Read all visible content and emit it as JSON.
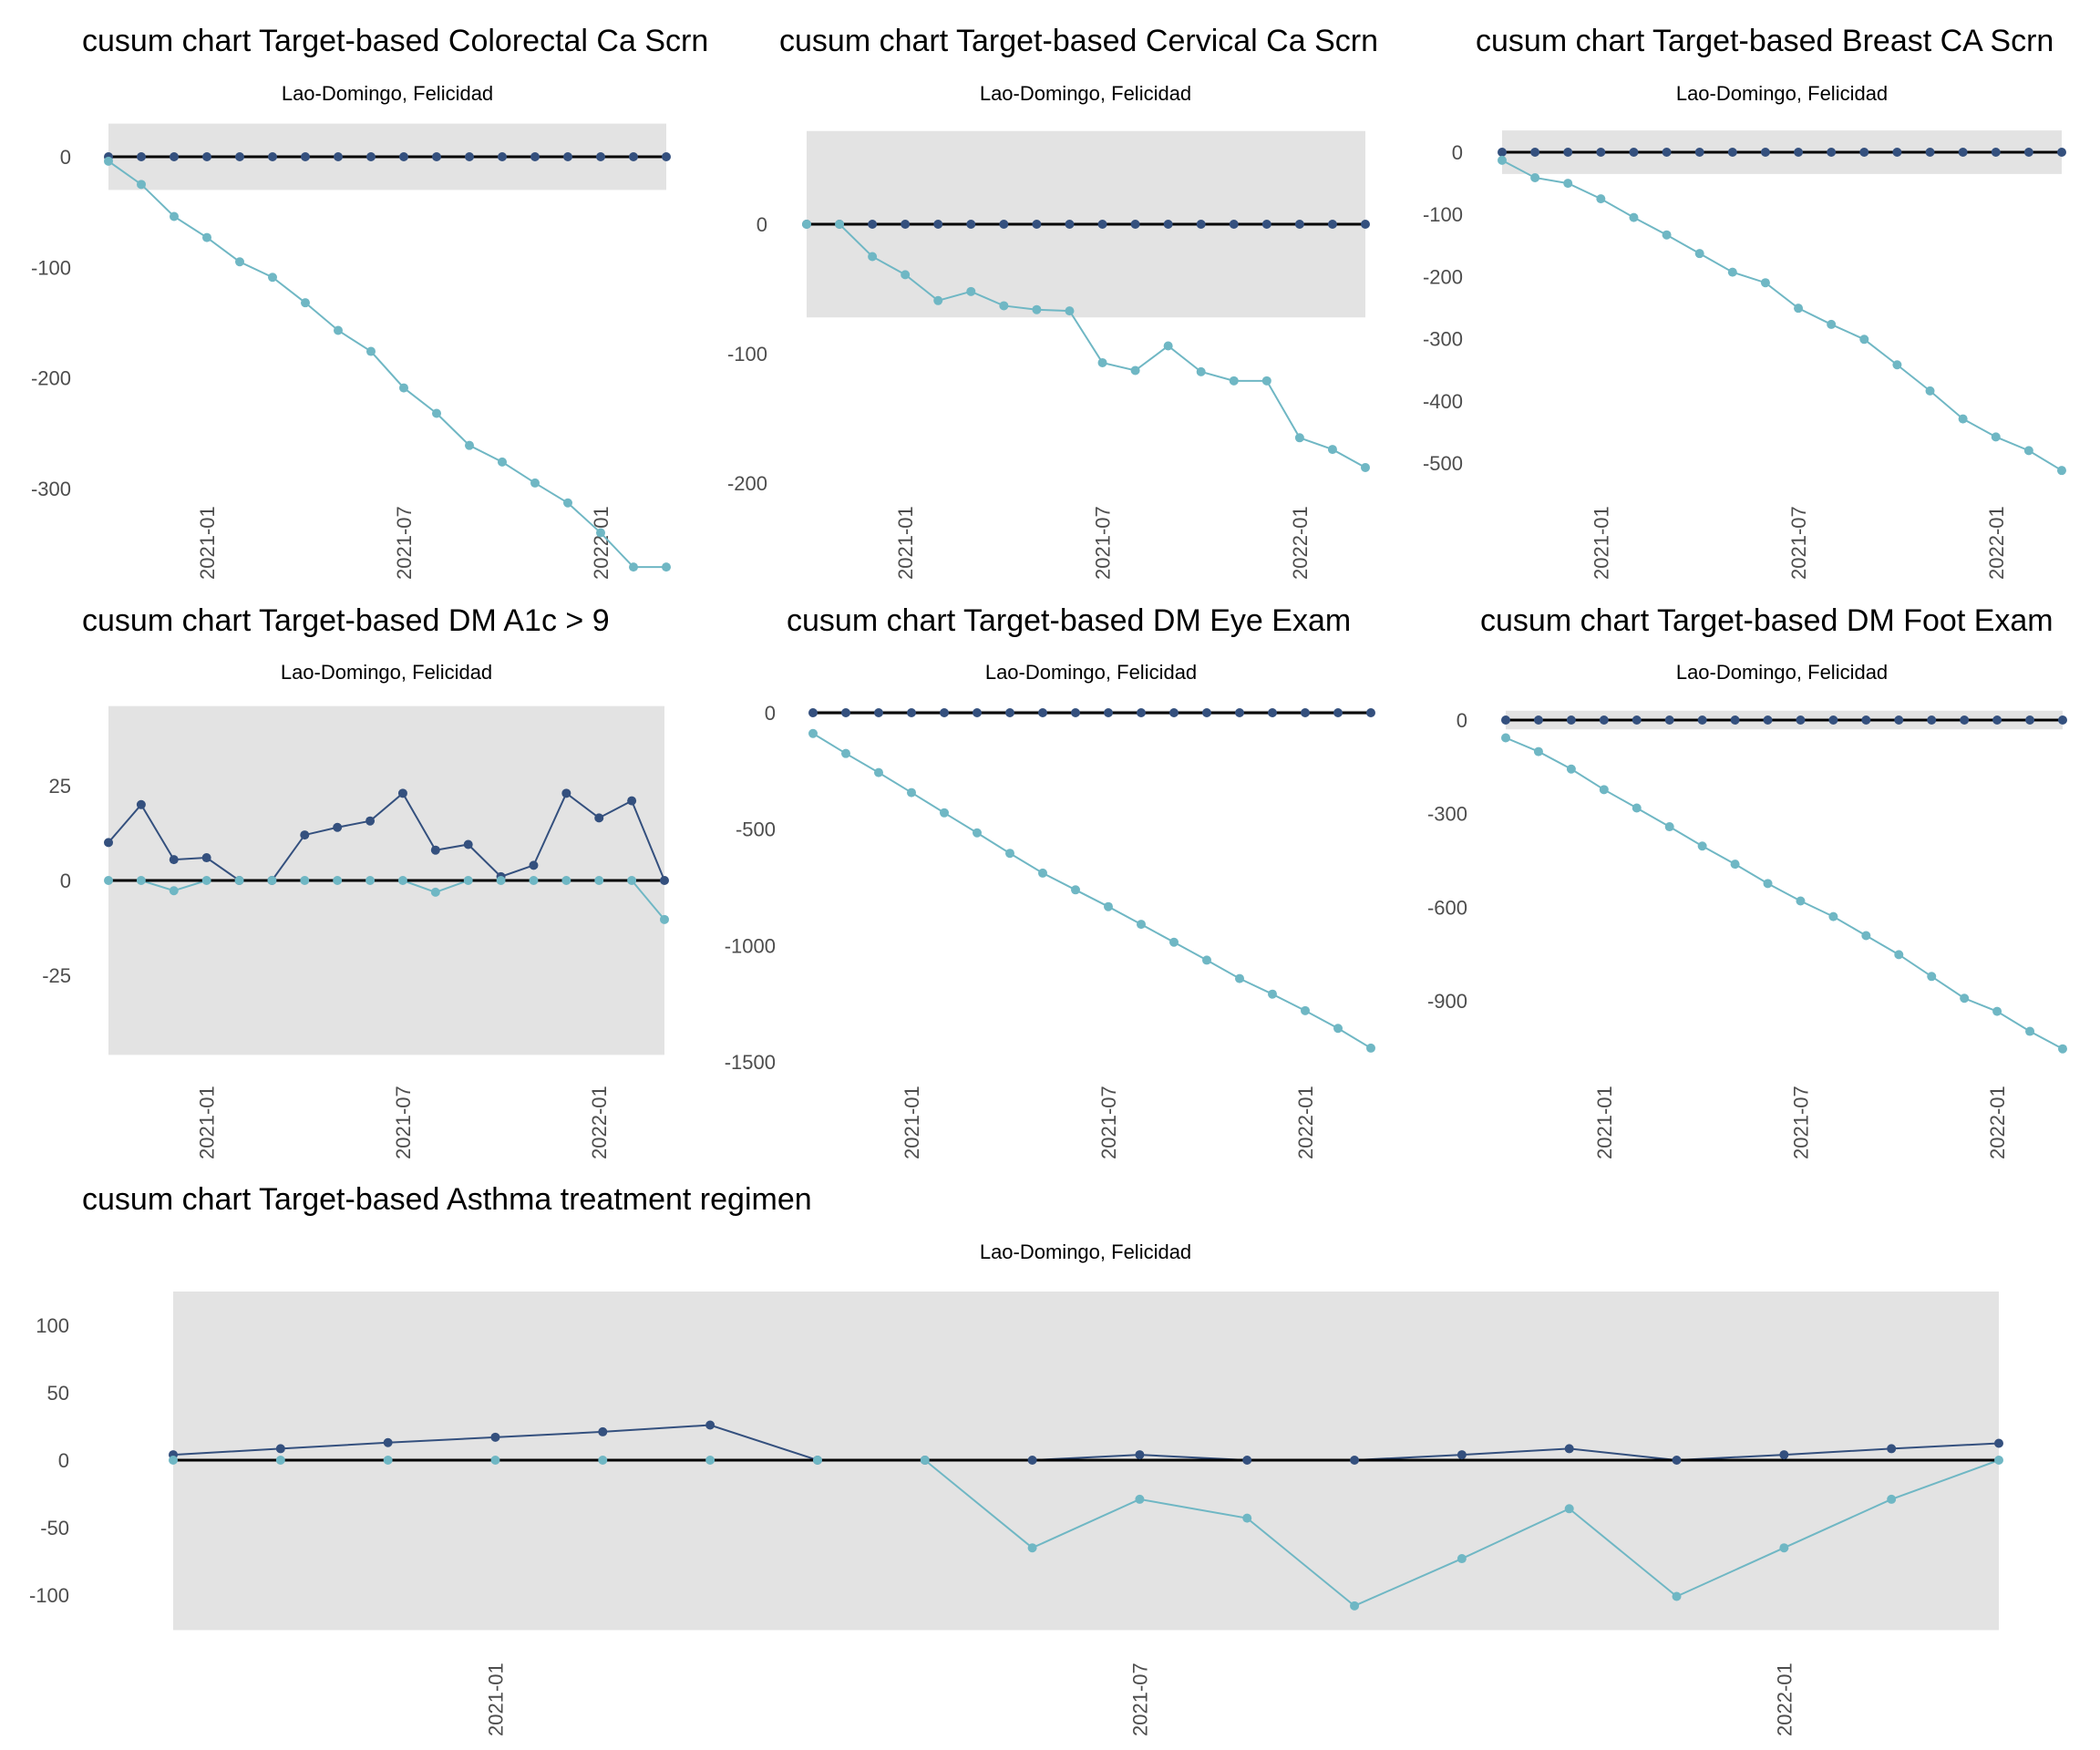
{
  "colors": {
    "upper_series": "#34507e",
    "lower_series": "#6fb7c4",
    "target_line": "#000000",
    "control_band": "#e3e3e3",
    "text": "#000000",
    "tick_text": "#4d4d4d"
  },
  "chart_data": [
    {
      "id": "colorectal",
      "type": "line",
      "title": "cusum chart Target-based  Colorectal Ca Scrn",
      "subtitle": "Lao-Domingo, Felicidad",
      "xlabel": "",
      "ylabel": "",
      "x": [
        "2020-10",
        "2020-11",
        "2020-12",
        "2021-01",
        "2021-02",
        "2021-03",
        "2021-04",
        "2021-05",
        "2021-06",
        "2021-07",
        "2021-08",
        "2021-09",
        "2021-10",
        "2021-11",
        "2021-12",
        "2022-01",
        "2022-02",
        "2022-03"
      ],
      "x_ticks": [
        "2021-01",
        "2021-07",
        "2022-01"
      ],
      "y_ticks": [
        0,
        -100,
        -200,
        -300
      ],
      "y_tick_labels": [
        "0",
        "-100",
        "-200",
        "-300"
      ],
      "control_band": [
        -30,
        30
      ],
      "target": 0,
      "grid": false,
      "legend": "none",
      "series": [
        {
          "name": "upper",
          "values": [
            0,
            0,
            0,
            0,
            0,
            0,
            0,
            0,
            0,
            0,
            0,
            0,
            0,
            0,
            0,
            0,
            0,
            0
          ]
        },
        {
          "name": "lower",
          "values": [
            -4,
            -25,
            -54,
            -73,
            -95,
            -109,
            -132,
            -157,
            -176,
            -209,
            -232,
            -261,
            -276,
            -295,
            -313,
            -340,
            -371,
            -371
          ]
        }
      ]
    },
    {
      "id": "cervical",
      "type": "line",
      "title": "cusum chart Target-based  Cervical Ca Scrn",
      "subtitle": "Lao-Domingo, Felicidad",
      "xlabel": "",
      "ylabel": "",
      "x": [
        "2020-10",
        "2020-11",
        "2020-12",
        "2021-01",
        "2021-02",
        "2021-03",
        "2021-04",
        "2021-05",
        "2021-06",
        "2021-07",
        "2021-08",
        "2021-09",
        "2021-10",
        "2021-11",
        "2021-12",
        "2022-01",
        "2022-02",
        "2022-03"
      ],
      "x_ticks": [
        "2021-01",
        "2021-07",
        "2022-01"
      ],
      "y_ticks": [
        0,
        -100,
        -200
      ],
      "y_tick_labels": [
        "0",
        "-100",
        "-200"
      ],
      "control_band": [
        -72,
        72
      ],
      "target": 0,
      "grid": false,
      "legend": "none",
      "series": [
        {
          "name": "upper",
          "values": [
            0,
            0,
            0,
            0,
            0,
            0,
            0,
            0,
            0,
            0,
            0,
            0,
            0,
            0,
            0,
            0,
            0,
            0
          ]
        },
        {
          "name": "lower",
          "values": [
            0,
            0,
            -25,
            -39,
            -59,
            -52,
            -63,
            -66,
            -67,
            -107,
            -113,
            -94,
            -114,
            -121,
            -121,
            -165,
            -174,
            -188
          ]
        }
      ]
    },
    {
      "id": "breast",
      "type": "line",
      "title": "cusum chart Target-based  Breast CA Scrn",
      "subtitle": "Lao-Domingo, Felicidad",
      "xlabel": "",
      "ylabel": "",
      "x": [
        "2020-10",
        "2020-11",
        "2020-12",
        "2021-01",
        "2021-02",
        "2021-03",
        "2021-04",
        "2021-05",
        "2021-06",
        "2021-07",
        "2021-08",
        "2021-09",
        "2021-10",
        "2021-11",
        "2021-12",
        "2022-01",
        "2022-02",
        "2022-03"
      ],
      "x_ticks": [
        "2021-01",
        "2021-07",
        "2022-01"
      ],
      "y_ticks": [
        0,
        -100,
        -200,
        -300,
        -400,
        -500
      ],
      "y_tick_labels": [
        "0",
        "-100",
        "-200",
        "-300",
        "-400",
        "-500"
      ],
      "control_band": [
        -35,
        35
      ],
      "target": 0,
      "grid": false,
      "legend": "none",
      "series": [
        {
          "name": "upper",
          "values": [
            0,
            0,
            0,
            0,
            0,
            0,
            0,
            0,
            0,
            0,
            0,
            0,
            0,
            0,
            0,
            0,
            0,
            0
          ]
        },
        {
          "name": "lower",
          "values": [
            -13,
            -41,
            -50,
            -75,
            -105,
            -133,
            -163,
            -193,
            -210,
            -251,
            -277,
            -301,
            -342,
            -384,
            -429,
            -458,
            -480,
            -512
          ]
        }
      ]
    },
    {
      "id": "a1c",
      "type": "line",
      "title": "cusum chart Target-based  DM A1c > 9",
      "subtitle": "Lao-Domingo, Felicidad",
      "xlabel": "",
      "ylabel": "",
      "x": [
        "2020-10",
        "2020-11",
        "2020-12",
        "2021-01",
        "2021-02",
        "2021-03",
        "2021-04",
        "2021-05",
        "2021-06",
        "2021-07",
        "2021-08",
        "2021-09",
        "2021-10",
        "2021-11",
        "2021-12",
        "2022-01",
        "2022-02",
        "2022-03"
      ],
      "x_ticks": [
        "2021-01",
        "2021-07",
        "2022-01"
      ],
      "y_ticks": [
        25,
        0,
        -25
      ],
      "y_tick_labels": [
        "25",
        "0",
        "-25"
      ],
      "control_band": [
        -46,
        46
      ],
      "target": 0,
      "grid": false,
      "legend": "none",
      "series": [
        {
          "name": "upper",
          "values": [
            10,
            20,
            5.5,
            6,
            0,
            0,
            12,
            14,
            15.7,
            23,
            8,
            9.5,
            1,
            4,
            23,
            16.5,
            21,
            0
          ]
        },
        {
          "name": "lower",
          "values": [
            0,
            0,
            -2.7,
            0,
            0,
            0,
            0,
            0,
            0,
            0,
            -3.1,
            0,
            0,
            0,
            0,
            0,
            0,
            -10.3
          ]
        }
      ]
    },
    {
      "id": "eye",
      "type": "line",
      "title": "cusum chart Target-based  DM Eye Exam",
      "subtitle": "Lao-Domingo, Felicidad",
      "xlabel": "",
      "ylabel": "",
      "x": [
        "2020-10",
        "2020-11",
        "2020-12",
        "2021-01",
        "2021-02",
        "2021-03",
        "2021-04",
        "2021-05",
        "2021-06",
        "2021-07",
        "2021-08",
        "2021-09",
        "2021-10",
        "2021-11",
        "2021-12",
        "2022-01",
        "2022-02",
        "2022-03"
      ],
      "x_ticks": [
        "2021-01",
        "2021-07",
        "2022-01"
      ],
      "y_ticks": [
        0,
        -500,
        -1000,
        -1500
      ],
      "y_tick_labels": [
        "0",
        "-500",
        "-1000",
        "-1500"
      ],
      "control_band": [
        -10,
        10
      ],
      "target": 0,
      "grid": false,
      "legend": "none",
      "series": [
        {
          "name": "upper",
          "values": [
            0,
            0,
            0,
            0,
            0,
            0,
            0,
            0,
            0,
            0,
            0,
            0,
            0,
            0,
            0,
            0,
            0,
            0
          ]
        },
        {
          "name": "lower",
          "values": [
            -89,
            -175,
            -257,
            -343,
            -430,
            -516,
            -604,
            -689,
            -761,
            -833,
            -909,
            -986,
            -1063,
            -1142,
            -1209,
            -1280,
            -1356,
            -1441
          ]
        }
      ]
    },
    {
      "id": "foot",
      "type": "line",
      "title": "cusum chart Target-based  DM Foot Exam",
      "subtitle": "Lao-Domingo, Felicidad",
      "xlabel": "",
      "ylabel": "",
      "x": [
        "2020-10",
        "2020-11",
        "2020-12",
        "2021-01",
        "2021-02",
        "2021-03",
        "2021-04",
        "2021-05",
        "2021-06",
        "2021-07",
        "2021-08",
        "2021-09",
        "2021-10",
        "2021-11",
        "2021-12",
        "2022-01",
        "2022-02",
        "2022-03"
      ],
      "x_ticks": [
        "2021-01",
        "2021-07",
        "2022-01"
      ],
      "y_ticks": [
        0,
        -300,
        -600,
        -900
      ],
      "y_tick_labels": [
        "0",
        "-300",
        "-600",
        "-900"
      ],
      "control_band": [
        -30,
        30
      ],
      "target": 0,
      "grid": false,
      "legend": "none",
      "series": [
        {
          "name": "upper",
          "values": [
            0,
            0,
            0,
            0,
            0,
            0,
            0,
            0,
            0,
            0,
            0,
            0,
            0,
            0,
            0,
            0,
            0,
            0
          ]
        },
        {
          "name": "lower",
          "values": [
            -57,
            -101,
            -157,
            -223,
            -282,
            -342,
            -404,
            -462,
            -524,
            -580,
            -630,
            -691,
            -752,
            -822,
            -892,
            -934,
            -998,
            -1054
          ]
        }
      ]
    },
    {
      "id": "asthma",
      "type": "line",
      "title": "cusum chart Target-based  Asthma treatment regimen",
      "subtitle": "Lao-Domingo, Felicidad",
      "xlabel": "",
      "ylabel": "",
      "x": [
        "2020-10",
        "2020-11",
        "2020-12",
        "2021-01",
        "2021-02",
        "2021-03",
        "2021-04",
        "2021-05",
        "2021-06",
        "2021-07",
        "2021-08",
        "2021-09",
        "2021-10",
        "2021-11",
        "2021-12",
        "2022-01",
        "2022-02",
        "2022-03"
      ],
      "x_ticks": [
        "2021-01",
        "2021-07",
        "2022-01"
      ],
      "y_ticks": [
        100,
        50,
        0,
        -50,
        -100
      ],
      "y_tick_labels": [
        "100",
        "50",
        "0",
        "-50",
        "-100"
      ],
      "control_band": [
        -126,
        125
      ],
      "target": 0,
      "grid": false,
      "legend": "none",
      "series": [
        {
          "name": "upper",
          "values": [
            4,
            8.5,
            13,
            17,
            21,
            26,
            0,
            0,
            0,
            4,
            0,
            0,
            4,
            8.5,
            0,
            4,
            8.5,
            12.5
          ]
        },
        {
          "name": "lower",
          "values": [
            0,
            0,
            0,
            0,
            0,
            0,
            0,
            0,
            -65,
            -29,
            -43,
            -108,
            -73,
            -36,
            -101,
            -65,
            -29,
            0
          ]
        }
      ]
    }
  ]
}
